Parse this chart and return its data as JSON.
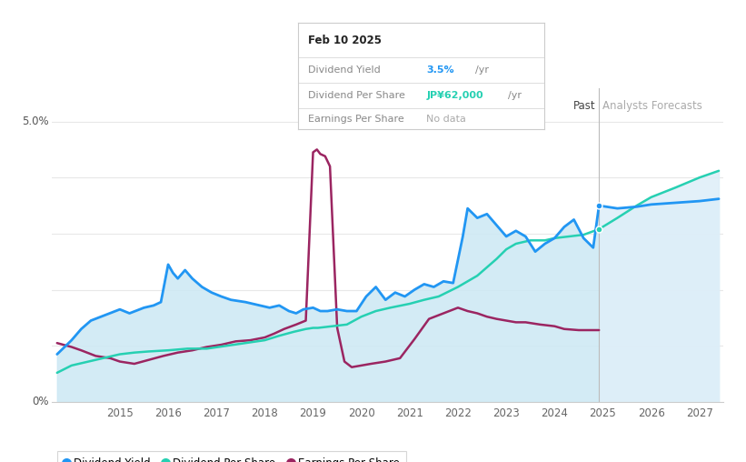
{
  "tooltip_date": "Feb 10 2025",
  "tooltip_yield_label": "Dividend Yield",
  "tooltip_yield_value": "3.5%",
  "tooltip_yield_suffix": "/yr",
  "tooltip_dps_label": "Dividend Per Share",
  "tooltip_dps_value": "JP¥62,000",
  "tooltip_dps_suffix": "/yr",
  "tooltip_eps_label": "Earnings Per Share",
  "tooltip_eps_value": "No data",
  "background_color": "#ffffff",
  "past_fill_color": "#cce8f4",
  "forecast_fill_color": "#ddeef8",
  "grid_color": "#e8e8e8",
  "dividend_yield_color": "#2196F3",
  "dividend_per_share_color": "#26d0b2",
  "earnings_per_share_color": "#9b2561",
  "past_boundary": 2024.92,
  "xlim": [
    2013.6,
    2027.5
  ],
  "ylim": [
    0.0,
    5.6
  ],
  "xticks": [
    2015,
    2016,
    2017,
    2018,
    2019,
    2020,
    2021,
    2022,
    2023,
    2024,
    2025,
    2026,
    2027
  ],
  "legend_labels": [
    "Dividend Yield",
    "Dividend Per Share",
    "Earnings Per Share"
  ],
  "div_yield_x": [
    2013.7,
    2014.0,
    2014.2,
    2014.4,
    2014.7,
    2015.0,
    2015.2,
    2015.5,
    2015.7,
    2015.85,
    2016.0,
    2016.1,
    2016.2,
    2016.35,
    2016.5,
    2016.7,
    2016.9,
    2017.1,
    2017.3,
    2017.6,
    2017.9,
    2018.1,
    2018.3,
    2018.5,
    2018.65,
    2018.8,
    2019.0,
    2019.15,
    2019.3,
    2019.5,
    2019.7,
    2019.9,
    2020.1,
    2020.3,
    2020.5,
    2020.7,
    2020.9,
    2021.1,
    2021.3,
    2021.5,
    2021.7,
    2021.9,
    2022.1,
    2022.2,
    2022.4,
    2022.6,
    2022.8,
    2023.0,
    2023.2,
    2023.4,
    2023.6,
    2023.8,
    2024.0,
    2024.2,
    2024.4,
    2024.6,
    2024.8,
    2024.92
  ],
  "div_yield_y": [
    0.85,
    1.1,
    1.3,
    1.45,
    1.55,
    1.65,
    1.58,
    1.68,
    1.72,
    1.78,
    2.45,
    2.3,
    2.2,
    2.35,
    2.2,
    2.05,
    1.95,
    1.88,
    1.82,
    1.78,
    1.72,
    1.68,
    1.72,
    1.62,
    1.58,
    1.65,
    1.68,
    1.62,
    1.62,
    1.65,
    1.62,
    1.62,
    1.88,
    2.05,
    1.82,
    1.95,
    1.88,
    2.0,
    2.1,
    2.05,
    2.15,
    2.12,
    2.95,
    3.45,
    3.28,
    3.35,
    3.15,
    2.95,
    3.05,
    2.95,
    2.68,
    2.82,
    2.92,
    3.12,
    3.25,
    2.92,
    2.75,
    3.5
  ],
  "div_yield_forecast_x": [
    2024.92,
    2025.3,
    2025.7,
    2026.0,
    2026.5,
    2027.0,
    2027.4
  ],
  "div_yield_forecast_y": [
    3.5,
    3.45,
    3.48,
    3.52,
    3.55,
    3.58,
    3.62
  ],
  "dps_x": [
    2013.7,
    2014.0,
    2014.5,
    2015.0,
    2015.3,
    2015.6,
    2016.0,
    2016.4,
    2016.8,
    2017.2,
    2017.6,
    2018.0,
    2018.3,
    2018.6,
    2018.85,
    2019.0,
    2019.1,
    2019.4,
    2019.7,
    2020.0,
    2020.3,
    2020.6,
    2021.0,
    2021.3,
    2021.6,
    2022.0,
    2022.4,
    2022.8,
    2023.0,
    2023.2,
    2023.5,
    2023.8,
    2024.0,
    2024.3,
    2024.6,
    2024.92
  ],
  "dps_y": [
    0.52,
    0.65,
    0.75,
    0.85,
    0.88,
    0.9,
    0.92,
    0.95,
    0.95,
    1.0,
    1.05,
    1.1,
    1.18,
    1.25,
    1.3,
    1.32,
    1.32,
    1.35,
    1.38,
    1.52,
    1.62,
    1.68,
    1.75,
    1.82,
    1.88,
    2.05,
    2.25,
    2.55,
    2.72,
    2.82,
    2.88,
    2.88,
    2.92,
    2.95,
    2.98,
    3.08
  ],
  "dps_forecast_x": [
    2024.92,
    2025.3,
    2025.7,
    2026.0,
    2026.5,
    2027.0,
    2027.4
  ],
  "dps_forecast_y": [
    3.08,
    3.28,
    3.5,
    3.65,
    3.82,
    4.0,
    4.12
  ],
  "eps_x": [
    2013.7,
    2014.0,
    2014.2,
    2014.5,
    2014.8,
    2015.0,
    2015.3,
    2015.6,
    2015.9,
    2016.2,
    2016.5,
    2016.8,
    2017.1,
    2017.4,
    2017.7,
    2018.0,
    2018.2,
    2018.4,
    2018.65,
    2018.85,
    2019.0,
    2019.08,
    2019.15,
    2019.25,
    2019.35,
    2019.5,
    2019.65,
    2019.8,
    2020.0,
    2020.2,
    2020.5,
    2020.8,
    2021.1,
    2021.4,
    2021.7,
    2022.0,
    2022.2,
    2022.4,
    2022.6,
    2022.8,
    2023.0,
    2023.2,
    2023.4,
    2023.7,
    2024.0,
    2024.2,
    2024.5,
    2024.92
  ],
  "eps_y": [
    1.05,
    0.98,
    0.92,
    0.82,
    0.78,
    0.72,
    0.68,
    0.75,
    0.82,
    0.88,
    0.92,
    0.98,
    1.02,
    1.08,
    1.1,
    1.15,
    1.22,
    1.3,
    1.38,
    1.45,
    4.45,
    4.5,
    4.42,
    4.38,
    4.2,
    1.32,
    0.72,
    0.62,
    0.65,
    0.68,
    0.72,
    0.78,
    1.12,
    1.48,
    1.58,
    1.68,
    1.62,
    1.58,
    1.52,
    1.48,
    1.45,
    1.42,
    1.42,
    1.38,
    1.35,
    1.3,
    1.28,
    1.28
  ]
}
